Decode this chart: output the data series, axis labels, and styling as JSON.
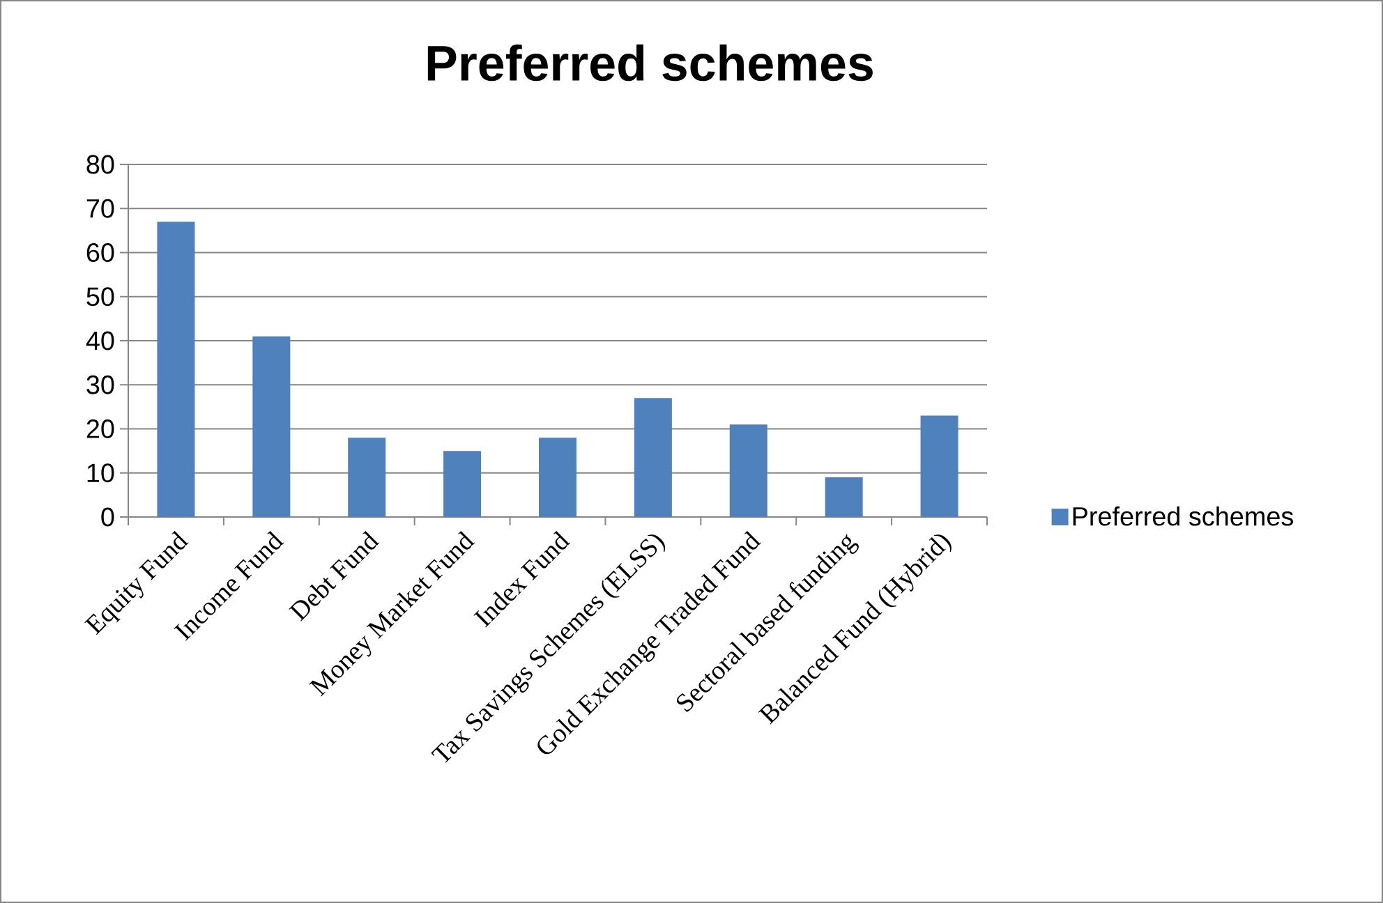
{
  "chart_data": {
    "type": "bar",
    "title": "Preferred schemes",
    "categories": [
      "Equity Fund",
      "Income Fund",
      "Debt Fund",
      "Money Market Fund",
      "Index Fund",
      "Tax Savings Schemes (ELSS)",
      "Gold Exchange Traded Fund",
      "Sectoral based funding",
      "Balanced Fund (Hybrid)"
    ],
    "series": [
      {
        "name": "Preferred schemes",
        "color": "#4f81bd",
        "values": [
          67,
          41,
          18,
          15,
          18,
          27,
          21,
          9,
          23
        ]
      }
    ],
    "ylim": [
      0,
      80
    ],
    "yticks": [
      0,
      10,
      20,
      30,
      40,
      50,
      60,
      70,
      80
    ],
    "grid": "y",
    "legend": "right"
  }
}
